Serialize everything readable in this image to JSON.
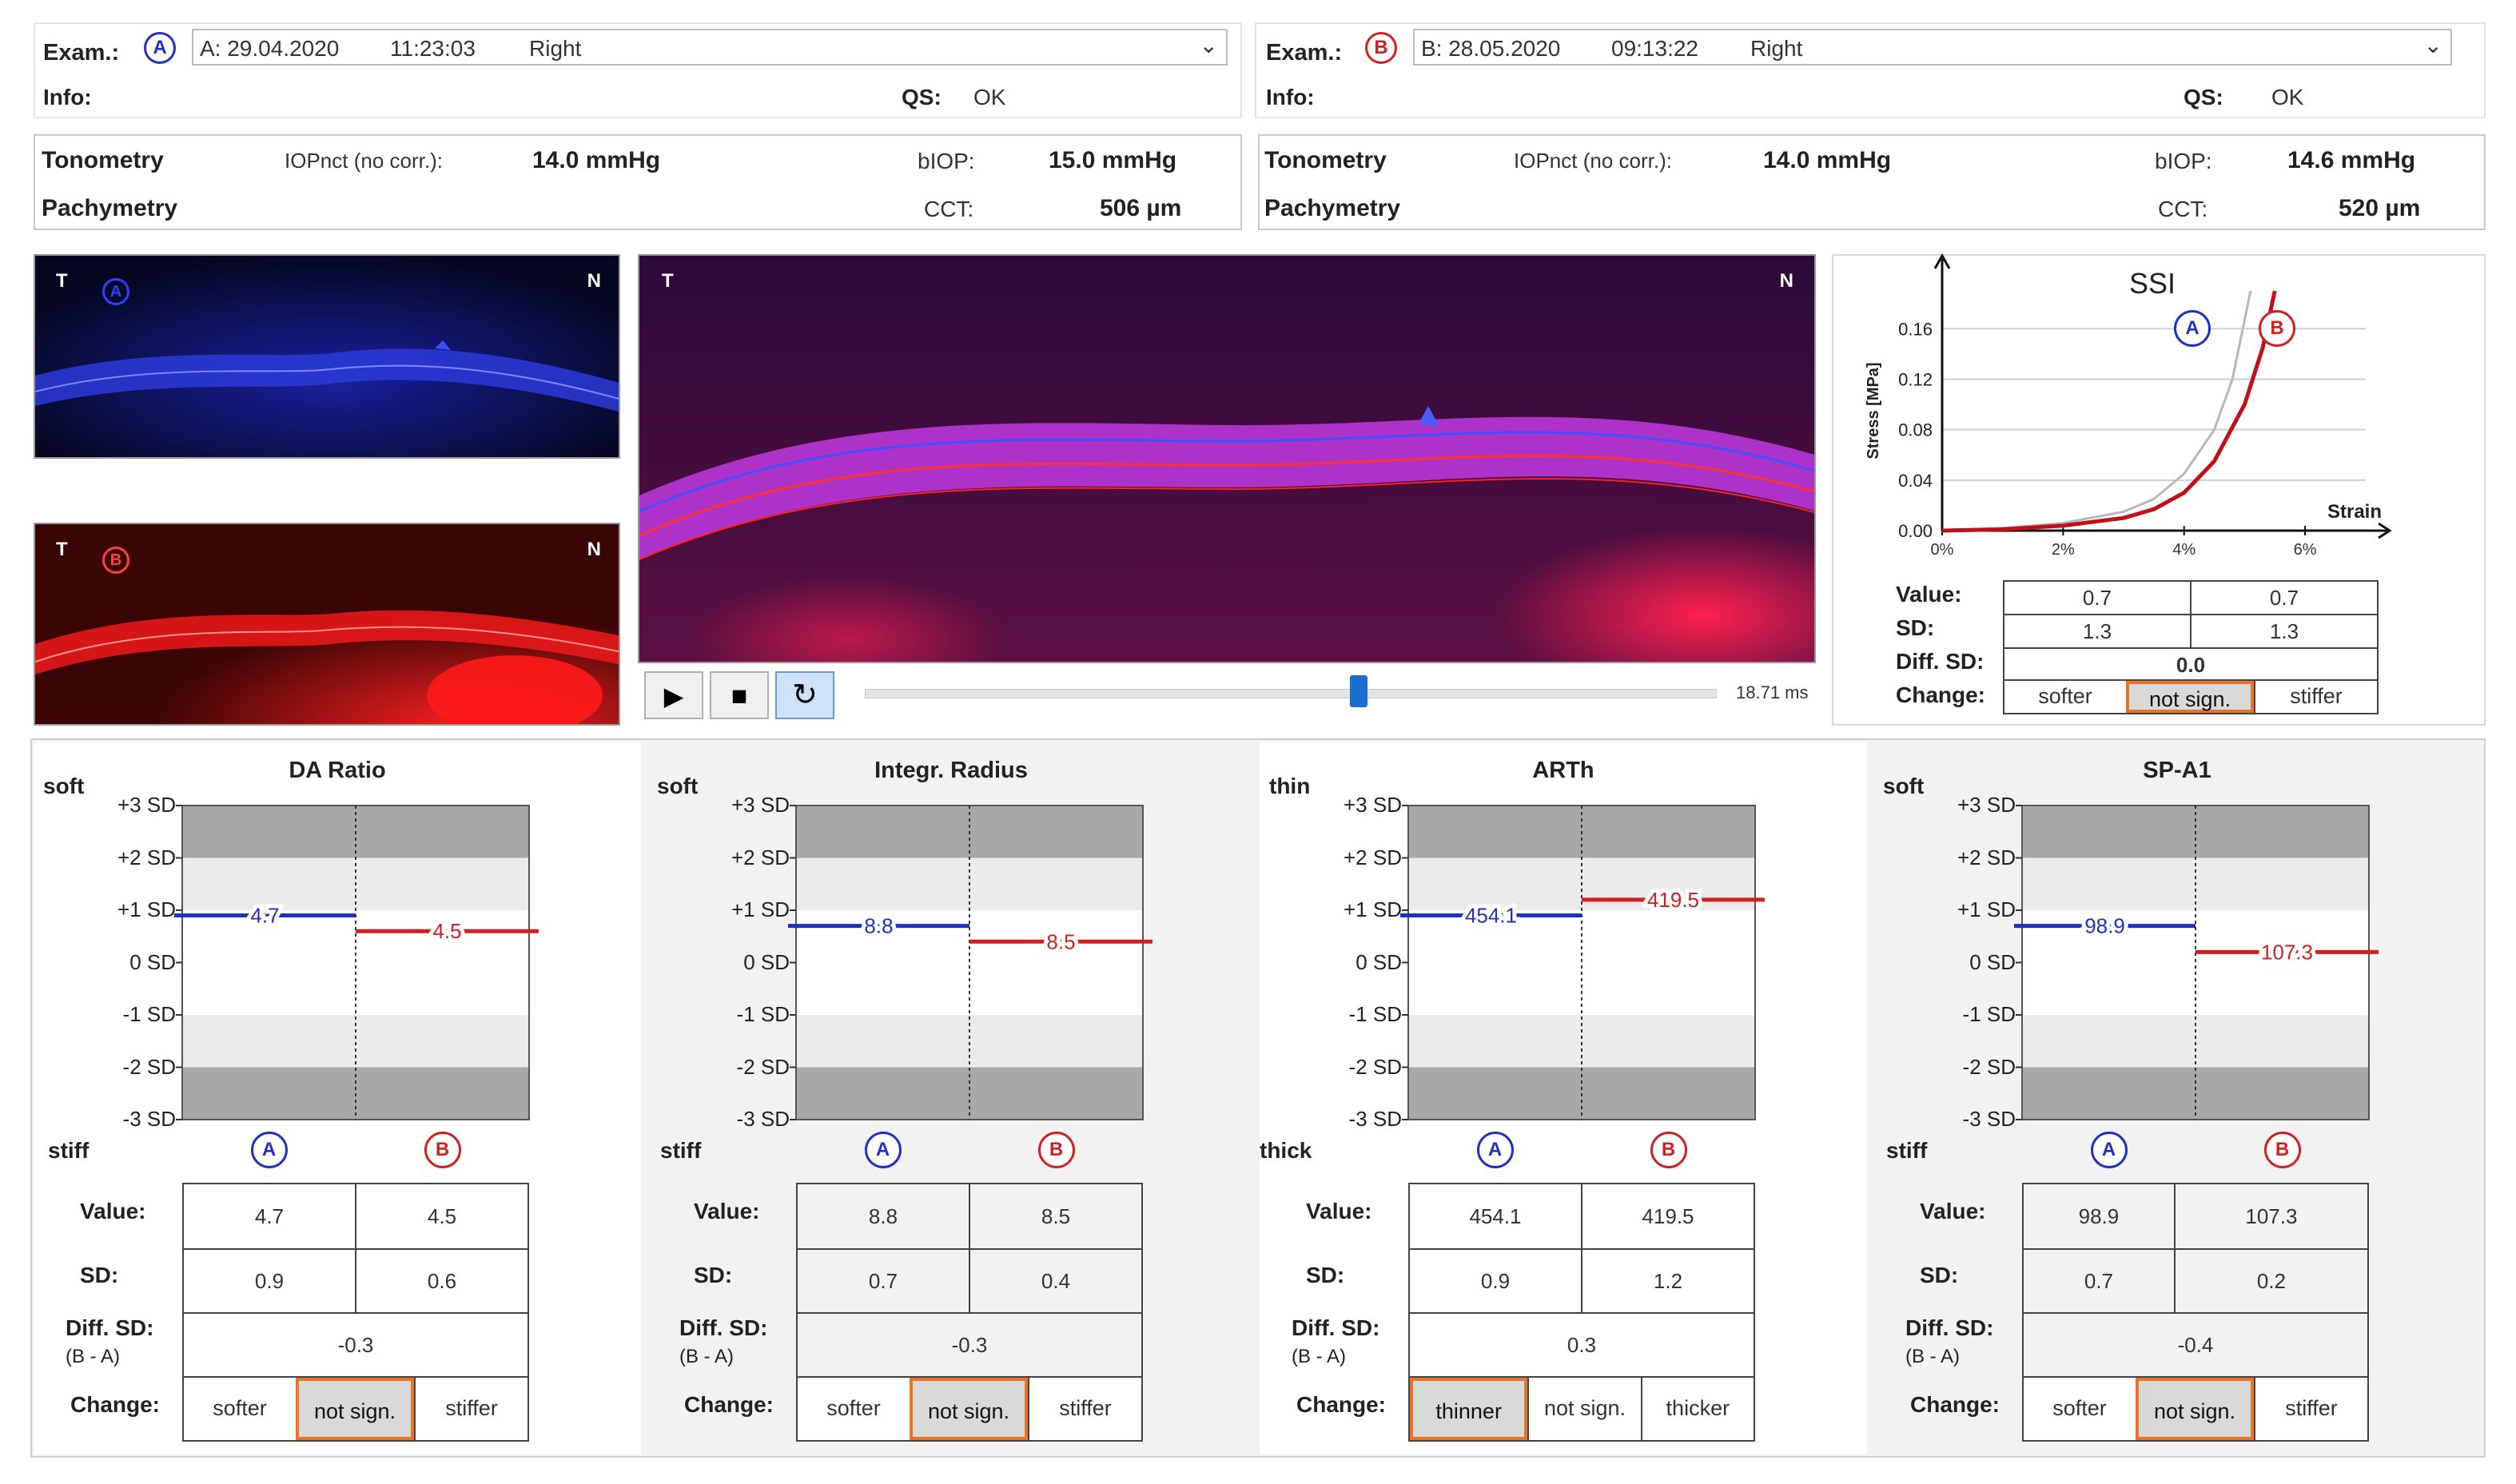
{
  "exams": {
    "a": {
      "exam_label": "Exam.:",
      "badge": "A",
      "date": "A: 29.04.2020",
      "time": "11:23:03",
      "eye": "Right",
      "info_label": "Info:",
      "qs_label": "QS:",
      "qs_value": "OK",
      "tonometry_label": "Tonometry",
      "iop_label": "IOPnct (no corr.):",
      "iop_value": "14.0 mmHg",
      "biop_label": "bIOP:",
      "biop_value": "15.0 mmHg",
      "pachymetry_label": "Pachymetry",
      "cct_label": "CCT:",
      "cct_value": "506 µm"
    },
    "b": {
      "exam_label": "Exam.:",
      "badge": "B",
      "date": "B: 28.05.2020",
      "time": "09:13:22",
      "eye": "Right",
      "info_label": "Info:",
      "qs_label": "QS:",
      "qs_value": "OK",
      "tonometry_label": "Tonometry",
      "iop_label": "IOPnct (no corr.):",
      "iop_value": "14.0 mmHg",
      "biop_label": "bIOP:",
      "biop_value": "14.6 mmHg",
      "pachymetry_label": "Pachymetry",
      "cct_label": "CCT:",
      "cct_value": "520 µm"
    }
  },
  "images": {
    "temporal": "T",
    "nasal": "N",
    "badge_a": "A",
    "badge_b": "B",
    "time_readout": "18.71 ms"
  },
  "player": {
    "play_icon": "play-icon",
    "stop_icon": "stop-icon",
    "loop_icon": "loop-icon",
    "position_fraction": 0.58
  },
  "ssi": {
    "title": "SSI",
    "ylabel": "Stress [MPa]",
    "xlabel": "Strain",
    "badge_a": "A",
    "badge_b": "B",
    "chart_data": {
      "type": "line",
      "title": "SSI",
      "xlabel": "Strain",
      "ylabel": "Stress [MPa]",
      "xticks": [
        "0%",
        "2%",
        "4%",
        "6%"
      ],
      "yticks": [
        "0.00",
        "0.04",
        "0.08",
        "0.12",
        "0.16"
      ],
      "xlim": [
        0,
        7.4
      ],
      "ylim": [
        0,
        0.19
      ],
      "series": [
        {
          "name": "A",
          "color": "#b8b8b8",
          "x": [
            0,
            1,
            2,
            3,
            3.5,
            4,
            4.5,
            4.8,
            5.1
          ],
          "y": [
            0,
            0.002,
            0.006,
            0.015,
            0.025,
            0.045,
            0.08,
            0.12,
            0.19
          ]
        },
        {
          "name": "B",
          "color": "#c0101a",
          "x": [
            0,
            1,
            2,
            3,
            3.5,
            4,
            4.5,
            5,
            5.3,
            5.5
          ],
          "y": [
            0,
            0.001,
            0.004,
            0.01,
            0.017,
            0.03,
            0.055,
            0.1,
            0.145,
            0.19
          ]
        }
      ]
    },
    "value_label": "Value:",
    "value_a": "0.7",
    "value_b": "0.7",
    "sd_label": "SD:",
    "sd_a": "1.3",
    "sd_b": "1.3",
    "diff_label": "Diff. SD:",
    "diff_value": "0.0",
    "change_label": "Change:",
    "change_options": [
      "softer",
      "not sign.",
      "stiffer"
    ],
    "change_selected": 1
  },
  "sd_axis": [
    "+3 SD",
    "+2 SD",
    "+1 SD",
    "0 SD",
    "-1 SD",
    "-2 SD",
    "-3 SD"
  ],
  "params": [
    {
      "title": "DA Ratio",
      "top_label": "soft",
      "bottom_label": "stiff",
      "value_a": "4.7",
      "value_b": "4.5",
      "sd_a": "0.9",
      "sd_b": "0.6",
      "sd_pos_a": 0.9,
      "sd_pos_b": 0.6,
      "diff": "-0.3",
      "change_options": [
        "softer",
        "not sign.",
        "stiffer"
      ],
      "change_selected": 1
    },
    {
      "title": "Integr. Radius",
      "top_label": "soft",
      "bottom_label": "stiff",
      "value_a": "8.8",
      "value_b": "8.5",
      "sd_a": "0.7",
      "sd_b": "0.4",
      "sd_pos_a": 0.7,
      "sd_pos_b": 0.4,
      "diff": "-0.3",
      "change_options": [
        "softer",
        "not sign.",
        "stiffer"
      ],
      "change_selected": 1
    },
    {
      "title": "ARTh",
      "top_label": "thin",
      "bottom_label": "thick",
      "value_a": "454.1",
      "value_b": "419.5",
      "sd_a": "0.9",
      "sd_b": "1.2",
      "sd_pos_a": 0.9,
      "sd_pos_b": 1.2,
      "diff": "0.3",
      "change_options": [
        "thinner",
        "not sign.",
        "thicker"
      ],
      "change_selected": 0
    },
    {
      "title": "SP-A1",
      "top_label": "soft",
      "bottom_label": "stiff",
      "value_a": "98.9",
      "value_b": "107.3",
      "sd_a": "0.7",
      "sd_b": "0.2",
      "sd_pos_a": 0.7,
      "sd_pos_b": 0.2,
      "diff": "-0.4",
      "change_options": [
        "softer",
        "not sign.",
        "stiffer"
      ],
      "change_selected": 1
    }
  ],
  "table_labels": {
    "value": "Value:",
    "sd": "SD:",
    "diff": "Diff. SD:",
    "diff_sub": "(B - A)",
    "change": "Change:",
    "badge_a": "A",
    "badge_b": "B"
  },
  "colors": {
    "exam_a": "#2030c0",
    "exam_b": "#d02020",
    "highlight": "#e8742a"
  }
}
